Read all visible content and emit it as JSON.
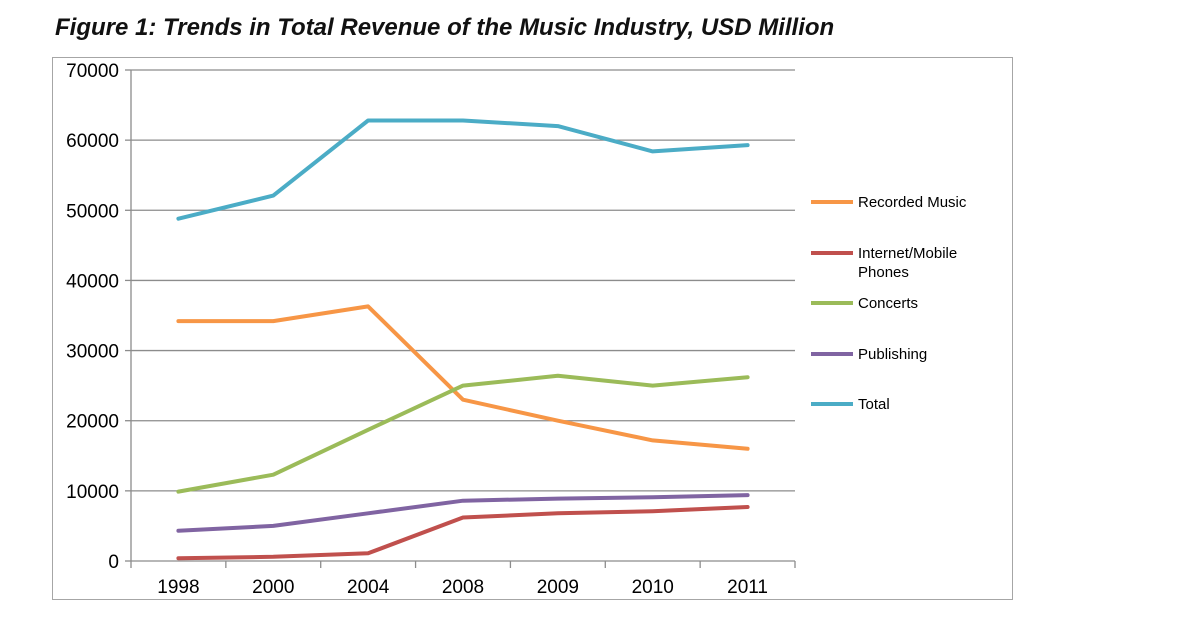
{
  "figure": {
    "title": "Figure 1: Trends in Total Revenue of the Music Industry, USD Million"
  },
  "chart_data": {
    "type": "line",
    "title": "Figure 1: Trends in Total Revenue of the Music Industry, USD Million",
    "xlabel": "",
    "ylabel": "",
    "categories": [
      "1998",
      "2000",
      "2004",
      "2008",
      "2009",
      "2010",
      "2011"
    ],
    "ylim": [
      0,
      70000
    ],
    "yticks": [
      0,
      10000,
      20000,
      30000,
      40000,
      50000,
      60000,
      70000
    ],
    "grid": "horizontal",
    "legend_position": "right",
    "series": [
      {
        "name": "Recorded Music",
        "color": "#f79646",
        "values": [
          34200,
          34200,
          36300,
          23000,
          20000,
          17200,
          16000
        ]
      },
      {
        "name": "Internet/Mobile Phones",
        "color": "#c0504d",
        "values": [
          400,
          600,
          1100,
          6200,
          6800,
          7100,
          7700
        ]
      },
      {
        "name": "Concerts",
        "color": "#9bbb59",
        "values": [
          9900,
          12300,
          18700,
          25000,
          26400,
          25000,
          26200
        ]
      },
      {
        "name": "Publishing",
        "color": "#8064a2",
        "values": [
          4300,
          5000,
          6800,
          8600,
          8900,
          9100,
          9400
        ]
      },
      {
        "name": "Total",
        "color": "#4bacc6",
        "values": [
          48800,
          52100,
          62800,
          62800,
          62000,
          58400,
          59300
        ]
      }
    ]
  }
}
